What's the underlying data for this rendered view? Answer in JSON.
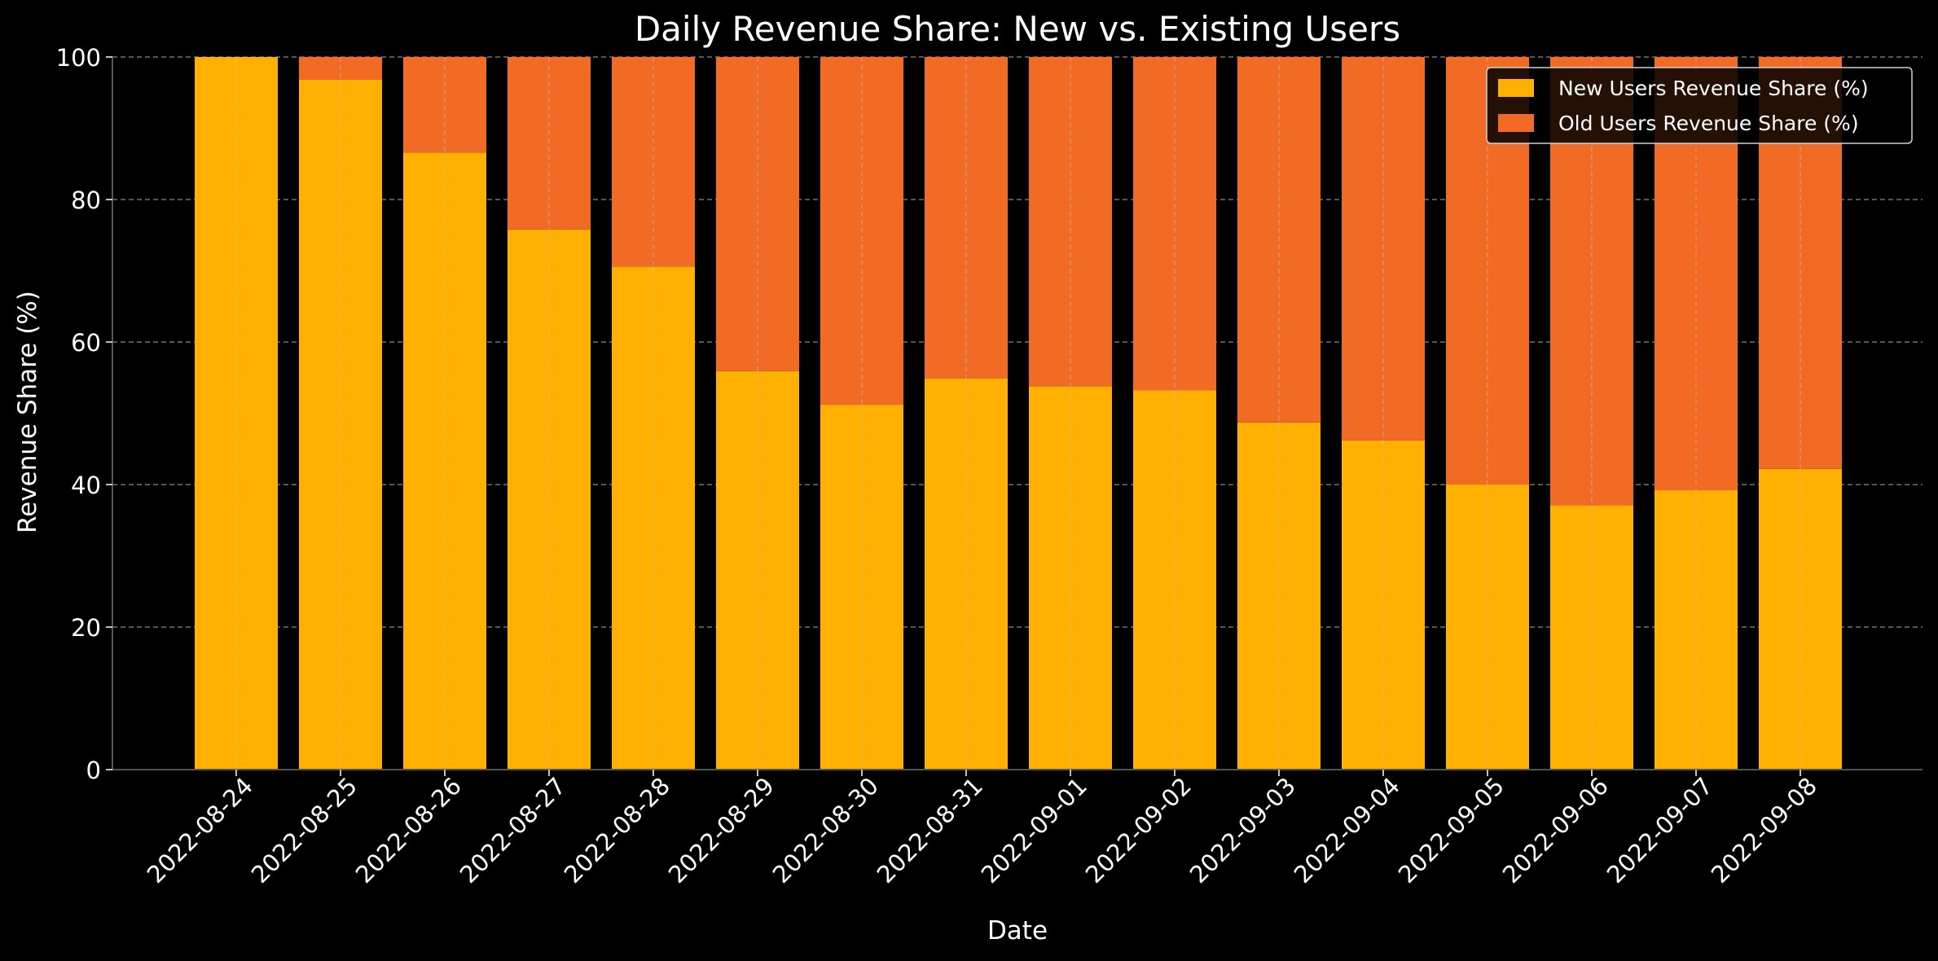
{
  "chart_data": {
    "type": "bar",
    "stacked": true,
    "title": "Daily Revenue Share: New vs. Existing Users",
    "xlabel": "Date",
    "ylabel": "Revenue Share (%)",
    "ylim": [
      0,
      100
    ],
    "yticks": [
      0,
      20,
      40,
      60,
      80,
      100
    ],
    "grid": true,
    "legend_position": "top-right",
    "categories": [
      "2022-08-24",
      "2022-08-25",
      "2022-08-26",
      "2022-08-27",
      "2022-08-28",
      "2022-08-29",
      "2022-08-30",
      "2022-08-31",
      "2022-09-01",
      "2022-09-02",
      "2022-09-03",
      "2022-09-04",
      "2022-09-05",
      "2022-09-06",
      "2022-09-07",
      "2022-09-08"
    ],
    "series": [
      {
        "name": "New Users Revenue Share (%)",
        "color": "#FFB000",
        "values": [
          100,
          96.8,
          86.6,
          75.8,
          70.6,
          55.9,
          51.2,
          54.9,
          53.8,
          53.2,
          48.7,
          46.2,
          40.0,
          37.1,
          39.2,
          42.2
        ]
      },
      {
        "name": "Old Users Revenue Share (%)",
        "color": "#F26B25",
        "values": [
          0,
          3.2,
          13.4,
          24.2,
          29.4,
          44.1,
          48.8,
          45.1,
          46.2,
          46.8,
          51.3,
          53.8,
          60.0,
          62.9,
          60.8,
          57.8
        ]
      }
    ]
  }
}
